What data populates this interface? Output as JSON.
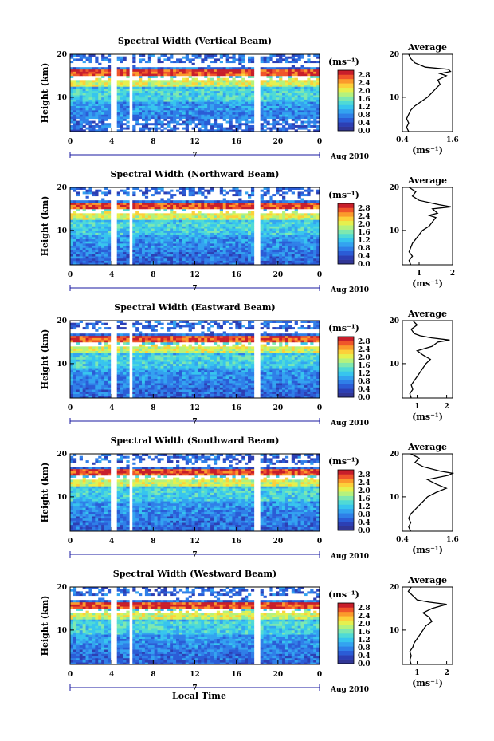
{
  "colors": {
    "colormap": [
      "#313695",
      "#2c3fb4",
      "#2b5cd6",
      "#2f7fe8",
      "#33a3f0",
      "#37c5ee",
      "#4fdad6",
      "#7ee8b0",
      "#b5f27c",
      "#e6f04e",
      "#fcd03a",
      "#fb9a2c",
      "#f0552a",
      "#c81e2a"
    ],
    "panel_bg": "#ffffff",
    "date_axis": "#1a1aa0",
    "curve": "#000000"
  },
  "chart_data": [
    {
      "type": "heatmap",
      "title": "Spectral Width (Vertical Beam)",
      "ylabel": "Height (km)",
      "x_ticks": [
        "0",
        "4",
        "8",
        "12",
        "16",
        "20",
        "0"
      ],
      "xlim": [
        0,
        24
      ],
      "y_ticks": [
        "20",
        "10"
      ],
      "ylim": [
        2,
        20
      ],
      "date_label": "Aug 2010",
      "date_day": "7",
      "gaps_hours": [
        [
          4.0,
          4.5
        ],
        [
          5.6,
          6.0
        ],
        [
          17.7,
          18.2
        ]
      ],
      "colorbar": {
        "unit": "(ms⁻¹)",
        "ticks": [
          "2.8",
          "2.4",
          "2.0",
          "1.6",
          "1.2",
          "0.8",
          "0.4",
          "0.0"
        ],
        "min": 0.0,
        "max": 2.8
      },
      "profile": {
        "title": "Average",
        "xlabel": "(ms⁻¹)",
        "x_ticks": [
          "0.4",
          "1.6"
        ],
        "xlim": [
          0.4,
          1.6
        ],
        "y_ticks": [
          "20",
          "10"
        ],
        "height": [
          2,
          3,
          4,
          5,
          6,
          7,
          8,
          9,
          10,
          11,
          12,
          13,
          14,
          15,
          15.5,
          16,
          16.5,
          17,
          18,
          19,
          20
        ],
        "value": [
          0.55,
          0.5,
          0.55,
          0.5,
          0.55,
          0.6,
          0.7,
          0.85,
          1.0,
          1.1,
          1.2,
          1.3,
          1.25,
          1.45,
          1.3,
          1.55,
          1.5,
          0.95,
          0.7,
          0.6,
          0.55
        ]
      }
    },
    {
      "type": "heatmap",
      "title": "Spectral Width (Northward Beam)",
      "ylabel": "Height (km)",
      "x_ticks": [
        "0",
        "4",
        "8",
        "12",
        "16",
        "20",
        "0"
      ],
      "xlim": [
        0,
        24
      ],
      "y_ticks": [
        "20",
        "10"
      ],
      "ylim": [
        2,
        20
      ],
      "date_label": "Aug 2010",
      "date_day": "7",
      "gaps_hours": [
        [
          4.0,
          4.5
        ],
        [
          5.6,
          6.0
        ],
        [
          17.7,
          18.2
        ]
      ],
      "colorbar": {
        "unit": "(ms⁻¹)",
        "ticks": [
          "2.8",
          "2.4",
          "2.0",
          "1.6",
          "1.2",
          "0.8",
          "0.4",
          "0.0"
        ],
        "min": 0.0,
        "max": 2.8
      },
      "profile": {
        "title": "Average",
        "xlabel": "(ms⁻¹)",
        "x_ticks": [
          "1",
          "2"
        ],
        "xlim": [
          0.5,
          2.0
        ],
        "y_ticks": [
          "20",
          "10"
        ],
        "height": [
          2,
          3,
          4,
          5,
          6,
          7,
          8,
          9,
          10,
          11,
          12,
          13,
          13.5,
          14,
          15,
          15.5,
          16,
          17,
          18,
          19,
          20
        ],
        "value": [
          0.75,
          0.7,
          0.8,
          0.7,
          0.75,
          0.8,
          0.9,
          1.0,
          1.1,
          1.3,
          1.4,
          1.5,
          1.3,
          1.55,
          1.4,
          1.95,
          1.6,
          1.0,
          0.8,
          0.9,
          0.7
        ]
      }
    },
    {
      "type": "heatmap",
      "title": "Spectral Width (Eastward Beam)",
      "ylabel": "Height (km)",
      "x_ticks": [
        "0",
        "4",
        "8",
        "12",
        "16",
        "20",
        "0"
      ],
      "xlim": [
        0,
        24
      ],
      "y_ticks": [
        "20",
        "10"
      ],
      "ylim": [
        2,
        20
      ],
      "date_label": "Aug 2010",
      "date_day": "7",
      "gaps_hours": [
        [
          4.0,
          4.5
        ],
        [
          5.6,
          6.0
        ],
        [
          17.7,
          18.2
        ]
      ],
      "colorbar": {
        "unit": "(ms⁻¹)",
        "ticks": [
          "2.8",
          "2.4",
          "2.0",
          "1.6",
          "1.2",
          "0.8",
          "0.4",
          "0.0"
        ],
        "min": 0.0,
        "max": 2.8
      },
      "profile": {
        "title": "Average",
        "xlabel": "(ms⁻¹)",
        "x_ticks": [
          "1",
          "2"
        ],
        "xlim": [
          0.5,
          2.2
        ],
        "y_ticks": [
          "20",
          "10"
        ],
        "height": [
          2,
          3,
          4,
          5,
          6,
          7,
          8,
          9,
          10,
          11,
          12,
          13,
          14,
          15,
          15.5,
          16,
          16.5,
          17,
          18,
          19,
          20
        ],
        "value": [
          0.8,
          0.75,
          0.85,
          0.8,
          0.9,
          1.0,
          1.1,
          1.2,
          1.3,
          1.45,
          1.2,
          1.0,
          1.5,
          1.7,
          2.1,
          1.5,
          1.1,
          0.9,
          0.8,
          1.0,
          0.85
        ]
      }
    },
    {
      "type": "heatmap",
      "title": "Spectral Width (Southward Beam)",
      "ylabel": "Height (km)",
      "x_ticks": [
        "0",
        "4",
        "8",
        "12",
        "16",
        "20",
        "0"
      ],
      "xlim": [
        0,
        24
      ],
      "y_ticks": [
        "20",
        "10"
      ],
      "ylim": [
        2,
        20
      ],
      "date_label": "Aug 2010",
      "date_day": "7",
      "gaps_hours": [
        [
          4.0,
          4.5
        ],
        [
          5.6,
          6.0
        ],
        [
          17.7,
          18.2
        ]
      ],
      "colorbar": {
        "unit": "(ms⁻¹)",
        "ticks": [
          "2.8",
          "2.4",
          "2.0",
          "1.6",
          "1.2",
          "0.8",
          "0.4",
          "0.0"
        ],
        "min": 0.0,
        "max": 2.8
      },
      "profile": {
        "title": "Average",
        "xlabel": "(ms⁻¹)",
        "x_ticks": [
          "0.4",
          "1.6"
        ],
        "xlim": [
          0.4,
          1.6
        ],
        "y_ticks": [
          "20",
          "10"
        ],
        "height": [
          2,
          3,
          4,
          5,
          6,
          7,
          8,
          9,
          10,
          11,
          12,
          13,
          14,
          15,
          15.5,
          16,
          17,
          18,
          19,
          20
        ],
        "value": [
          0.6,
          0.55,
          0.6,
          0.55,
          0.6,
          0.7,
          0.8,
          0.9,
          1.0,
          1.2,
          1.45,
          1.2,
          1.0,
          1.5,
          1.6,
          1.3,
          0.9,
          0.7,
          0.8,
          0.6
        ]
      }
    },
    {
      "type": "heatmap",
      "title": "Spectral Width (Westward Beam)",
      "ylabel": "Height (km)",
      "x_ticks": [
        "0",
        "4",
        "8",
        "12",
        "16",
        "20",
        "0"
      ],
      "xlim": [
        0,
        24
      ],
      "y_ticks": [
        "20",
        "10"
      ],
      "ylim": [
        2,
        20
      ],
      "date_label": "Aug 2010",
      "date_day": "7",
      "gaps_hours": [
        [
          4.0,
          4.5
        ],
        [
          5.6,
          6.0
        ],
        [
          17.7,
          18.2
        ]
      ],
      "colorbar": {
        "unit": "(ms⁻¹)",
        "ticks": [
          "2.8",
          "2.4",
          "2.0",
          "1.6",
          "1.2",
          "0.8",
          "0.4",
          "0.0"
        ],
        "min": 0.0,
        "max": 2.8
      },
      "profile": {
        "title": "Average",
        "xlabel": "(ms⁻¹)",
        "x_ticks": [
          "1",
          "2"
        ],
        "xlim": [
          0.5,
          2.2
        ],
        "y_ticks": [
          "20",
          "10"
        ],
        "height": [
          2,
          3,
          4,
          5,
          6,
          7,
          8,
          9,
          10,
          11,
          12,
          13,
          14,
          15,
          16,
          16.5,
          17,
          18,
          19,
          20
        ],
        "value": [
          0.8,
          0.75,
          0.8,
          0.75,
          0.85,
          0.9,
          1.0,
          1.1,
          1.2,
          1.3,
          1.5,
          1.4,
          1.2,
          1.5,
          2.0,
          1.4,
          1.0,
          0.85,
          0.7,
          0.8
        ]
      }
    }
  ],
  "footer": {
    "xlabel": "Local Time"
  }
}
